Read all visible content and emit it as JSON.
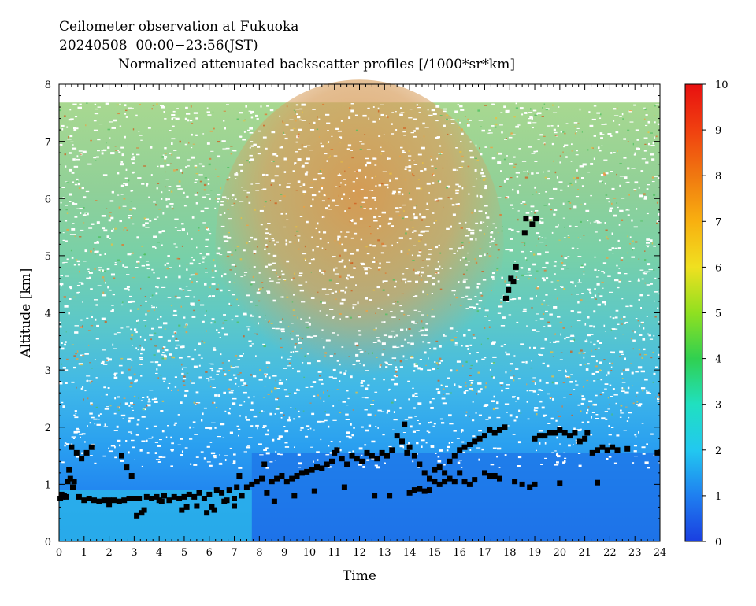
{
  "header": {
    "line1": "Ceilometer observation at Fukuoka",
    "line2": "20240508  00:00−23:56(JST)",
    "line3": "Normalized attenuated backscatter profiles [/1000*sr*km]"
  },
  "chart_data": {
    "type": "heatmap",
    "title": "Normalized attenuated backscatter profiles [/1000*sr*km]",
    "xlabel": "Time",
    "ylabel": "Altitude [km]",
    "xlim": [
      0,
      24
    ],
    "ylim": [
      0,
      8
    ],
    "x_ticks": [
      "0",
      "1",
      "2",
      "3",
      "4",
      "5",
      "6",
      "7",
      "8",
      "9",
      "10",
      "11",
      "12",
      "13",
      "14",
      "15",
      "16",
      "17",
      "18",
      "19",
      "20",
      "21",
      "22",
      "23",
      "24"
    ],
    "y_ticks": [
      "0",
      "1",
      "2",
      "3",
      "4",
      "5",
      "6",
      "7",
      "8"
    ],
    "colorbar": {
      "range": [
        0,
        10
      ],
      "ticks": [
        "0",
        "1",
        "2",
        "3",
        "4",
        "5",
        "6",
        "7",
        "8",
        "9",
        "10"
      ],
      "colors": [
        "#1a3ee0",
        "#1f7ff0",
        "#22c8f0",
        "#20e0c0",
        "#30d050",
        "#90e020",
        "#f0e020",
        "#f8b010",
        "#f07810",
        "#f04010",
        "#e81010"
      ]
    },
    "cloud_base": {
      "series_name": "",
      "points": [
        [
          0.05,
          0.75
        ],
        [
          0.1,
          0.82
        ],
        [
          0.15,
          0.78
        ],
        [
          0.2,
          0.8
        ],
        [
          0.3,
          0.78
        ],
        [
          0.35,
          1.05
        ],
        [
          0.4,
          1.25
        ],
        [
          0.45,
          1.1
        ],
        [
          0.5,
          1.65
        ],
        [
          0.55,
          0.95
        ],
        [
          0.6,
          1.05
        ],
        [
          0.7,
          1.55
        ],
        [
          0.8,
          0.78
        ],
        [
          0.9,
          1.45
        ],
        [
          1.0,
          0.72
        ],
        [
          1.1,
          1.55
        ],
        [
          1.2,
          0.75
        ],
        [
          1.3,
          1.65
        ],
        [
          1.4,
          0.72
        ],
        [
          1.6,
          0.7
        ],
        [
          1.8,
          0.72
        ],
        [
          2.0,
          0.65
        ],
        [
          2.2,
          0.72
        ],
        [
          2.4,
          0.7
        ],
        [
          2.5,
          1.5
        ],
        [
          2.6,
          0.72
        ],
        [
          2.7,
          1.3
        ],
        [
          2.8,
          0.75
        ],
        [
          2.9,
          1.15
        ],
        [
          3.0,
          0.75
        ],
        [
          3.1,
          0.45
        ],
        [
          3.2,
          0.75
        ],
        [
          3.4,
          0.55
        ],
        [
          3.5,
          0.78
        ],
        [
          3.7,
          0.75
        ],
        [
          3.9,
          0.78
        ],
        [
          4.1,
          0.7
        ],
        [
          4.2,
          0.8
        ],
        [
          4.4,
          0.72
        ],
        [
          4.6,
          0.78
        ],
        [
          4.8,
          0.75
        ],
        [
          5.0,
          0.78
        ],
        [
          5.1,
          0.6
        ],
        [
          5.2,
          0.82
        ],
        [
          5.4,
          0.78
        ],
        [
          5.6,
          0.85
        ],
        [
          5.8,
          0.75
        ],
        [
          5.9,
          0.5
        ],
        [
          6.0,
          0.82
        ],
        [
          6.2,
          0.55
        ],
        [
          6.3,
          0.9
        ],
        [
          6.5,
          0.85
        ],
        [
          6.7,
          0.72
        ],
        [
          6.8,
          0.9
        ],
        [
          7.0,
          0.75
        ],
        [
          7.1,
          0.95
        ],
        [
          7.2,
          1.15
        ],
        [
          7.3,
          0.8
        ],
        [
          7.5,
          0.95
        ],
        [
          7.7,
          1.0
        ],
        [
          7.9,
          1.05
        ],
        [
          8.1,
          1.1
        ],
        [
          8.2,
          1.35
        ],
        [
          8.3,
          0.85
        ],
        [
          8.5,
          1.05
        ],
        [
          8.7,
          1.1
        ],
        [
          8.9,
          1.15
        ],
        [
          9.1,
          1.05
        ],
        [
          9.3,
          1.1
        ],
        [
          9.5,
          1.15
        ],
        [
          9.7,
          1.2
        ],
        [
          9.9,
          1.22
        ],
        [
          10.1,
          1.25
        ],
        [
          10.3,
          1.3
        ],
        [
          10.5,
          1.28
        ],
        [
          10.7,
          1.35
        ],
        [
          10.9,
          1.4
        ],
        [
          11.0,
          1.55
        ],
        [
          11.1,
          1.6
        ],
        [
          11.3,
          1.45
        ],
        [
          11.5,
          1.35
        ],
        [
          11.7,
          1.5
        ],
        [
          11.9,
          1.45
        ],
        [
          12.1,
          1.4
        ],
        [
          12.3,
          1.55
        ],
        [
          12.5,
          1.5
        ],
        [
          12.7,
          1.45
        ],
        [
          12.9,
          1.55
        ],
        [
          13.1,
          1.5
        ],
        [
          13.3,
          1.6
        ],
        [
          13.5,
          1.85
        ],
        [
          13.7,
          1.75
        ],
        [
          13.8,
          2.05
        ],
        [
          13.9,
          1.55
        ],
        [
          14.0,
          1.65
        ],
        [
          14.2,
          1.5
        ],
        [
          14.4,
          1.35
        ],
        [
          14.6,
          1.2
        ],
        [
          14.8,
          1.1
        ],
        [
          15.0,
          1.25
        ],
        [
          15.2,
          1.3
        ],
        [
          15.4,
          1.2
        ],
        [
          15.6,
          1.4
        ],
        [
          15.8,
          1.5
        ],
        [
          16.0,
          1.6
        ],
        [
          16.2,
          1.65
        ],
        [
          16.4,
          1.7
        ],
        [
          16.6,
          1.75
        ],
        [
          16.8,
          1.8
        ],
        [
          17.0,
          1.85
        ],
        [
          17.2,
          1.95
        ],
        [
          17.4,
          1.9
        ],
        [
          17.6,
          1.95
        ],
        [
          17.8,
          2.0
        ],
        [
          17.85,
          4.25
        ],
        [
          17.95,
          4.4
        ],
        [
          18.05,
          4.6
        ],
        [
          18.15,
          4.55
        ],
        [
          18.25,
          4.8
        ],
        [
          18.6,
          5.4
        ],
        [
          18.65,
          5.65
        ],
        [
          18.9,
          5.55
        ],
        [
          19.05,
          5.65
        ],
        [
          19.0,
          1.8
        ],
        [
          19.2,
          1.85
        ],
        [
          19.4,
          1.85
        ],
        [
          19.6,
          1.9
        ],
        [
          19.8,
          1.9
        ],
        [
          20.0,
          1.95
        ],
        [
          20.2,
          1.9
        ],
        [
          20.4,
          1.85
        ],
        [
          20.6,
          1.9
        ],
        [
          20.8,
          1.75
        ],
        [
          21.0,
          1.8
        ],
        [
          21.1,
          1.9
        ],
        [
          21.3,
          1.55
        ],
        [
          21.5,
          1.6
        ],
        [
          21.7,
          1.65
        ],
        [
          21.9,
          1.6
        ],
        [
          22.1,
          1.65
        ],
        [
          22.3,
          1.6
        ],
        [
          22.7,
          1.62
        ],
        [
          23.9,
          1.55
        ],
        [
          14.0,
          0.85
        ],
        [
          14.2,
          0.9
        ],
        [
          14.4,
          0.92
        ],
        [
          14.6,
          0.88
        ],
        [
          14.8,
          0.9
        ],
        [
          15.0,
          1.05
        ],
        [
          15.2,
          1.0
        ],
        [
          15.4,
          1.05
        ],
        [
          15.6,
          1.1
        ],
        [
          15.8,
          1.05
        ],
        [
          16.0,
          1.2
        ],
        [
          16.2,
          1.05
        ],
        [
          16.4,
          1.0
        ],
        [
          16.6,
          1.08
        ],
        [
          17.0,
          1.2
        ],
        [
          17.2,
          1.15
        ],
        [
          17.4,
          1.15
        ],
        [
          17.6,
          1.1
        ],
        [
          18.2,
          1.05
        ],
        [
          18.5,
          1.0
        ],
        [
          18.8,
          0.95
        ],
        [
          19.0,
          1.0
        ],
        [
          20.0,
          1.02
        ],
        [
          21.5,
          1.03
        ],
        [
          2.0,
          0.72
        ],
        [
          3.3,
          0.5
        ],
        [
          4.0,
          0.72
        ],
        [
          4.9,
          0.55
        ],
        [
          5.5,
          0.62
        ],
        [
          6.1,
          0.6
        ],
        [
          6.6,
          0.7
        ],
        [
          7.0,
          0.62
        ],
        [
          8.6,
          0.7
        ],
        [
          9.4,
          0.8
        ],
        [
          10.2,
          0.88
        ],
        [
          11.4,
          0.95
        ],
        [
          12.6,
          0.8
        ],
        [
          13.2,
          0.8
        ]
      ]
    }
  }
}
